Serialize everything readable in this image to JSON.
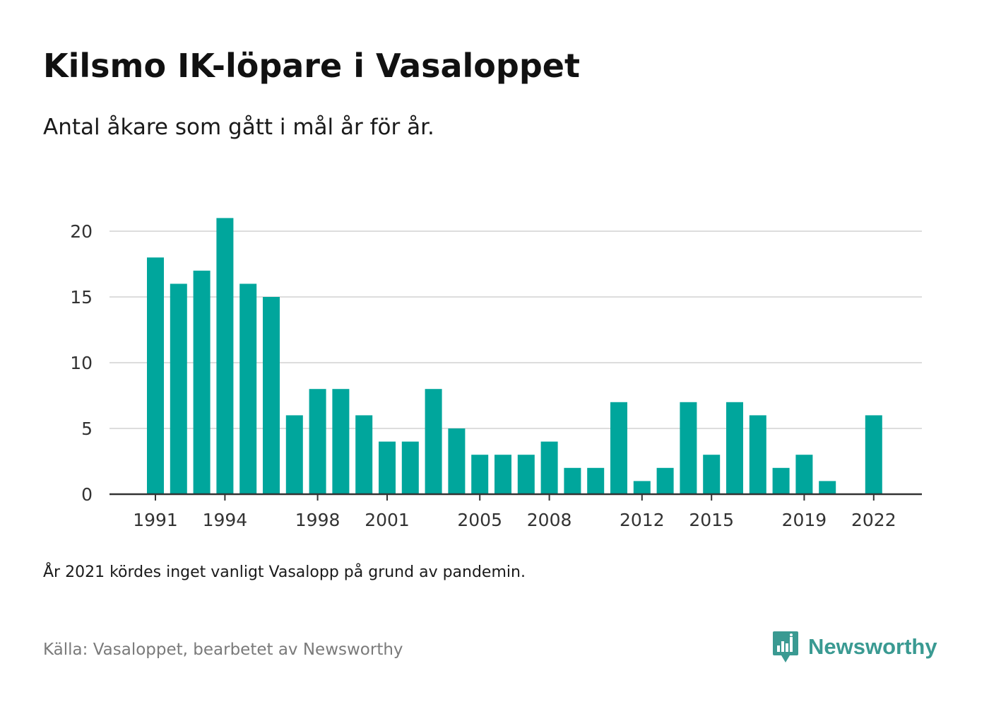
{
  "title": "Kilsmo IK-löpare i Vasaloppet",
  "subtitle": "Antal åkare som gått i mål år för år.",
  "note": "År 2021 kördes inget vanligt Vasalopp på grund av pandemin.",
  "source": "Källa: Vasaloppet, bearbetet av Newsworthy",
  "brand": {
    "name": "Newsworthy",
    "logo_icon": "bar-chart-badge-icon",
    "color": "#3a9a92"
  },
  "colors": {
    "bar": "#00a69c",
    "grid": "#dddddd",
    "axis": "#333333",
    "tick_text": "#333333"
  },
  "chart_data": {
    "type": "bar",
    "title": "",
    "xlabel": "",
    "ylabel": "",
    "ylim": [
      0,
      22
    ],
    "yticks": [
      0,
      5,
      10,
      15,
      20
    ],
    "xtick_labels": [
      "1991",
      "1994",
      "1998",
      "2001",
      "2005",
      "2008",
      "2012",
      "2015",
      "2019",
      "2022"
    ],
    "grid": true,
    "legend": "none",
    "categories": [
      "1991",
      "1992",
      "1993",
      "1994",
      "1995",
      "1996",
      "1997",
      "1998",
      "1999",
      "2000",
      "2001",
      "2002",
      "2003",
      "2004",
      "2005",
      "2006",
      "2007",
      "2008",
      "2009",
      "2010",
      "2011",
      "2012",
      "2013",
      "2014",
      "2015",
      "2016",
      "2017",
      "2018",
      "2019",
      "2020",
      "2021",
      "2022"
    ],
    "values": [
      18,
      16,
      17,
      21,
      16,
      15,
      6,
      8,
      8,
      6,
      4,
      4,
      8,
      5,
      3,
      3,
      3,
      4,
      2,
      2,
      7,
      1,
      2,
      7,
      3,
      7,
      6,
      2,
      3,
      1,
      null,
      6
    ]
  }
}
